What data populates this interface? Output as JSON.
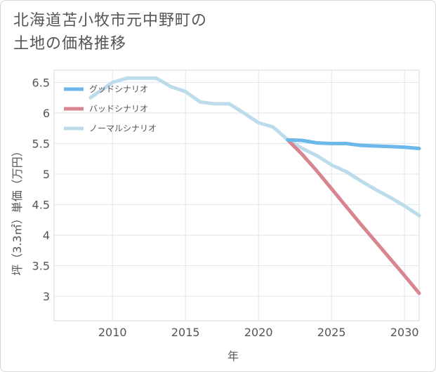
{
  "title_lines": [
    "北海道苫小牧市元中野町の",
    "土地の価格推移"
  ],
  "chart_data": {
    "type": "line",
    "xlabel": "年",
    "ylabel": "坪（3.3㎡）単価（万円）",
    "xlim": [
      2006,
      2031
    ],
    "ylim": [
      2.6,
      6.7
    ],
    "x_ticks": [
      2010,
      2015,
      2020,
      2025,
      2030
    ],
    "y_ticks": [
      3,
      3.5,
      4,
      4.5,
      5,
      5.5,
      6,
      6.5
    ],
    "x_tick_labels": [
      "2010",
      "2015",
      "2020",
      "2025",
      "2030"
    ],
    "y_tick_labels": [
      "3",
      "3.5",
      "4",
      "4.5",
      "5",
      "5.5",
      "6",
      "6.5"
    ],
    "grid": true,
    "legend_position": "top-left",
    "series": [
      {
        "name": "グッドシナリオ",
        "color": "#6cb8ea",
        "x": [
          2022,
          2023,
          2024,
          2025,
          2026,
          2027,
          2028,
          2029,
          2030,
          2031
        ],
        "y": [
          5.56,
          5.55,
          5.51,
          5.5,
          5.5,
          5.47,
          5.46,
          5.45,
          5.44,
          5.42
        ]
      },
      {
        "name": "バッドシナリオ",
        "color": "#d9858f",
        "x": [
          2022,
          2023,
          2024,
          2025,
          2026,
          2027,
          2028,
          2029,
          2030,
          2031
        ],
        "y": [
          5.56,
          5.32,
          5.05,
          4.76,
          4.47,
          4.18,
          3.9,
          3.62,
          3.34,
          3.05
        ]
      },
      {
        "name": "ノーマルシナリオ",
        "color": "#bcdcec",
        "x": [
          2008.5,
          2010,
          2011,
          2012,
          2013,
          2014,
          2015,
          2016,
          2017,
          2018,
          2019,
          2020,
          2021,
          2022,
          2023,
          2024,
          2025,
          2026,
          2027,
          2028,
          2029,
          2030,
          2031
        ],
        "y": [
          6.25,
          6.5,
          6.57,
          6.57,
          6.57,
          6.43,
          6.35,
          6.18,
          6.15,
          6.15,
          6.0,
          5.84,
          5.77,
          5.56,
          5.42,
          5.3,
          5.15,
          5.04,
          4.89,
          4.75,
          4.62,
          4.48,
          4.32
        ]
      }
    ]
  }
}
